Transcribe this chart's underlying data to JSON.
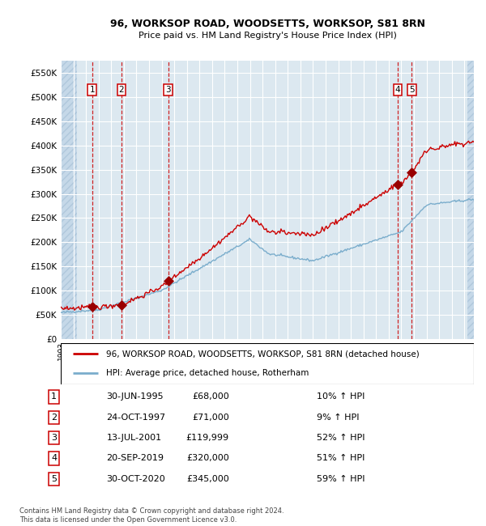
{
  "title": "96, WORKSOP ROAD, WOODSETTS, WORKSOP, S81 8RN",
  "subtitle": "Price paid vs. HM Land Registry's House Price Index (HPI)",
  "footer": "Contains HM Land Registry data © Crown copyright and database right 2024.\nThis data is licensed under the Open Government Licence v3.0.",
  "legend_property": "96, WORKSOP ROAD, WOODSETTS, WORKSOP, S81 8RN (detached house)",
  "legend_hpi": "HPI: Average price, detached house, Rotherham",
  "property_color": "#cc0000",
  "hpi_color": "#7aadcc",
  "sale_marker_color": "#990000",
  "vline_color": "#cc0000",
  "background_plot": "#dce8f0",
  "background_hatch_color": "#c5d8e8",
  "grid_color": "#ffffff",
  "ylim": [
    0,
    575000
  ],
  "yticks": [
    0,
    50000,
    100000,
    150000,
    200000,
    250000,
    300000,
    350000,
    400000,
    450000,
    500000,
    550000
  ],
  "xlim_start": 1993.0,
  "xlim_end": 2025.75,
  "hatch_left_end": 1994.3,
  "hatch_right_start": 2025.25,
  "sales": [
    {
      "num": 1,
      "date_dec": 1995.49,
      "date_str": "30-JUN-1995",
      "price": 68000,
      "pct": "10%",
      "dir": "↑"
    },
    {
      "num": 2,
      "date_dec": 1997.81,
      "date_str": "24-OCT-1997",
      "price": 71000,
      "pct": "9%",
      "dir": "↑"
    },
    {
      "num": 3,
      "date_dec": 2001.53,
      "date_str": "13-JUL-2001",
      "price": 119999,
      "pct": "52%",
      "dir": "↑"
    },
    {
      "num": 4,
      "date_dec": 2019.72,
      "date_str": "20-SEP-2019",
      "price": 320000,
      "pct": "51%",
      "dir": "↑"
    },
    {
      "num": 5,
      "date_dec": 2020.83,
      "date_str": "30-OCT-2020",
      "price": 345000,
      "pct": "59%",
      "dir": "↑"
    }
  ]
}
